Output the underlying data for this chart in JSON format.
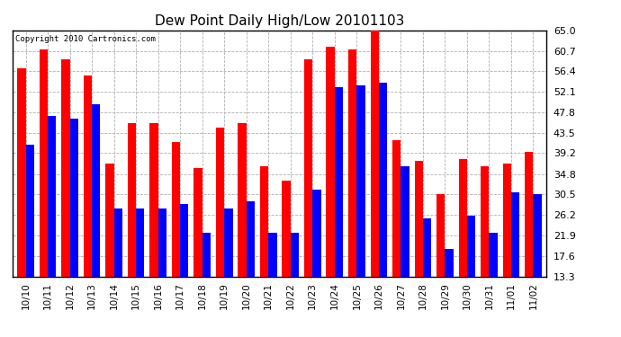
{
  "title": "Dew Point Daily High/Low 20101103",
  "copyright": "Copyright 2010 Cartronics.com",
  "categories": [
    "10/10",
    "10/11",
    "10/12",
    "10/13",
    "10/14",
    "10/15",
    "10/16",
    "10/17",
    "10/18",
    "10/19",
    "10/20",
    "10/21",
    "10/22",
    "10/23",
    "10/24",
    "10/25",
    "10/26",
    "10/27",
    "10/28",
    "10/29",
    "10/30",
    "10/31",
    "11/01",
    "11/02"
  ],
  "high": [
    57.0,
    61.0,
    59.0,
    55.5,
    37.0,
    45.5,
    45.5,
    41.5,
    36.0,
    44.5,
    45.5,
    36.5,
    33.5,
    59.0,
    61.5,
    61.0,
    65.0,
    42.0,
    37.5,
    30.5,
    38.0,
    36.5,
    37.0,
    39.5
  ],
  "low": [
    41.0,
    47.0,
    46.5,
    49.5,
    27.5,
    27.5,
    27.5,
    28.5,
    22.5,
    27.5,
    29.0,
    22.5,
    22.5,
    31.5,
    53.0,
    53.5,
    54.0,
    36.5,
    25.5,
    19.0,
    26.0,
    22.5,
    31.0,
    30.5
  ],
  "high_color": "#ff0000",
  "low_color": "#0000ff",
  "background_color": "#ffffff",
  "grid_color": "#b0b0b0",
  "ylim_min": 13.3,
  "ylim_max": 65.0,
  "yticks": [
    13.3,
    17.6,
    21.9,
    26.2,
    30.5,
    34.8,
    39.2,
    43.5,
    47.8,
    52.1,
    56.4,
    60.7,
    65.0
  ]
}
